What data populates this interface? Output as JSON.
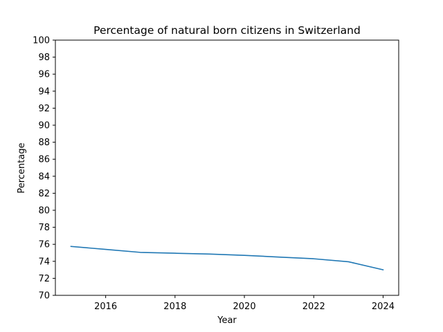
{
  "chart_data": {
    "type": "line",
    "title": "Percentage of natural born citizens in Switzerland",
    "xlabel": "Year",
    "ylabel": "Percentage",
    "xlim": [
      2014.55,
      2024.45
    ],
    "ylim": [
      70,
      100
    ],
    "xticks": [
      2016,
      2018,
      2020,
      2022,
      2024
    ],
    "yticks": [
      70,
      72,
      74,
      76,
      78,
      80,
      82,
      84,
      86,
      88,
      90,
      92,
      94,
      96,
      98,
      100
    ],
    "grid": false,
    "legend": "none",
    "series": [
      {
        "color": "#1f77b4",
        "x": [
          2015,
          2016,
          2017,
          2018,
          2019,
          2020,
          2021,
          2022,
          2023,
          2024
        ],
        "y": [
          75.75,
          75.4,
          75.05,
          74.95,
          74.85,
          74.7,
          74.5,
          74.3,
          73.95,
          73.0
        ]
      }
    ]
  }
}
